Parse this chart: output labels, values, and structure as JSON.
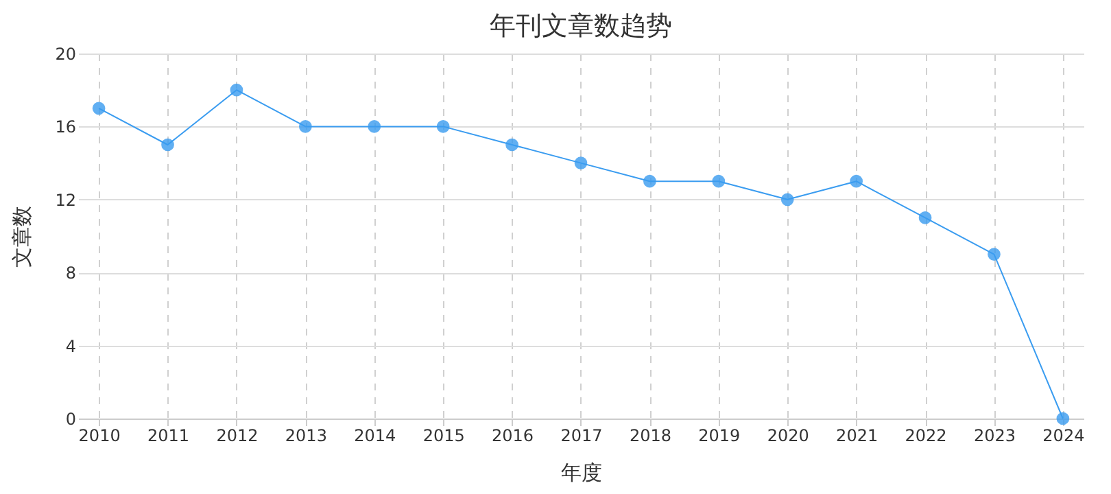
{
  "chart_data": {
    "type": "line",
    "title": "年刊文章数趋势",
    "xlabel": "年度",
    "ylabel": "文章数",
    "categories": [
      "2010",
      "2011",
      "2012",
      "2013",
      "2014",
      "2015",
      "2016",
      "2017",
      "2018",
      "2019",
      "2020",
      "2021",
      "2022",
      "2023",
      "2024"
    ],
    "series": [
      {
        "color": "#3a9cf0",
        "values": [
          17,
          15,
          18,
          16,
          16,
          16,
          15,
          14,
          13,
          13,
          12,
          13,
          11,
          9,
          0
        ]
      }
    ],
    "ylim": [
      0,
      20
    ],
    "yticks": [
      0,
      4,
      8,
      12,
      16,
      20
    ],
    "grid": true,
    "marker": "circle",
    "line_style": "solid"
  }
}
